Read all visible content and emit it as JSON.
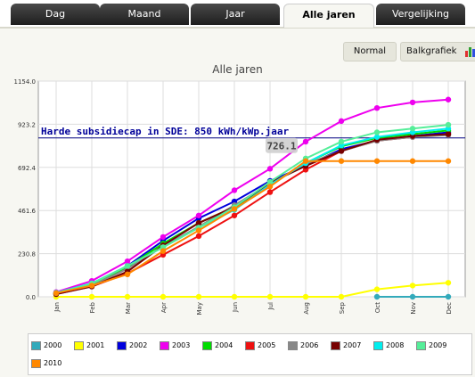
{
  "tabs": [
    {
      "label": "Dag",
      "active": false
    },
    {
      "label": "Maand",
      "active": false
    },
    {
      "label": "Jaar",
      "active": false
    },
    {
      "label": "Alle jaren",
      "active": true
    },
    {
      "label": "Vergelijking",
      "active": false
    }
  ],
  "toolbar": {
    "normal_label": "Normal",
    "bar_label": "Balkgrafiek"
  },
  "chart_data": {
    "type": "line",
    "title": "Alle jaren",
    "categories": [
      "Jan",
      "Feb",
      "Mar",
      "Apr",
      "May",
      "Jun",
      "Jul",
      "Aug",
      "Sep",
      "Oct",
      "Nov",
      "Dec"
    ],
    "yticks": [
      "0.0",
      "230.8",
      "461.6",
      "692.4",
      "923.2",
      "1154.0"
    ],
    "ylim": [
      0,
      1154
    ],
    "annotation": "Harde subsidiecap in SDE: 850 kWh/kWp.jaar",
    "annotation_value": 850,
    "tooltip": "726.1",
    "tooltip_point": {
      "x": "Aug",
      "y": 726.1
    },
    "grid": true,
    "legend_position": "bottom",
    "series": [
      {
        "name": "2000",
        "color": "#33aabb",
        "values": [
          null,
          null,
          null,
          null,
          null,
          null,
          null,
          null,
          null,
          0,
          0,
          0
        ]
      },
      {
        "name": "2001",
        "color": "#ffff00",
        "values": [
          0,
          0,
          0,
          0,
          0,
          0,
          0,
          0,
          0,
          40,
          60,
          75
        ]
      },
      {
        "name": "2002",
        "color": "#0000dd",
        "values": [
          20,
          70,
          165,
          300,
          420,
          510,
          620,
          700,
          790,
          835,
          860,
          880
        ]
      },
      {
        "name": "2003",
        "color": "#ee00ee",
        "values": [
          25,
          85,
          190,
          320,
          435,
          570,
          685,
          830,
          940,
          1010,
          1040,
          1055
        ]
      },
      {
        "name": "2004",
        "color": "#00dd00",
        "values": [
          18,
          65,
          160,
          285,
          395,
          480,
          600,
          715,
          805,
          850,
          870,
          890
        ]
      },
      {
        "name": "2005",
        "color": "#ee1111",
        "values": [
          15,
          55,
          125,
          225,
          325,
          435,
          560,
          680,
          780,
          835,
          855,
          870
        ]
      },
      {
        "name": "2006",
        "color": "#888888",
        "values": [
          18,
          60,
          150,
          270,
          375,
          490,
          605,
          710,
          780,
          835,
          855,
          865
        ]
      },
      {
        "name": "2007",
        "color": "#770000",
        "values": [
          14,
          55,
          135,
          275,
          395,
          480,
          610,
          700,
          780,
          840,
          860,
          870
        ]
      },
      {
        "name": "2008",
        "color": "#00eeee",
        "values": [
          22,
          72,
          165,
          265,
          370,
          465,
          600,
          715,
          810,
          855,
          880,
          900
        ]
      },
      {
        "name": "2009",
        "color": "#55ee99",
        "values": [
          20,
          70,
          165,
          265,
          370,
          480,
          615,
          740,
          830,
          880,
          900,
          920
        ]
      },
      {
        "name": "2010",
        "color": "#ff8800",
        "values": [
          20,
          60,
          120,
          245,
          355,
          470,
          590,
          726.1,
          726.1,
          726.1,
          726.1,
          726.1
        ]
      }
    ]
  }
}
